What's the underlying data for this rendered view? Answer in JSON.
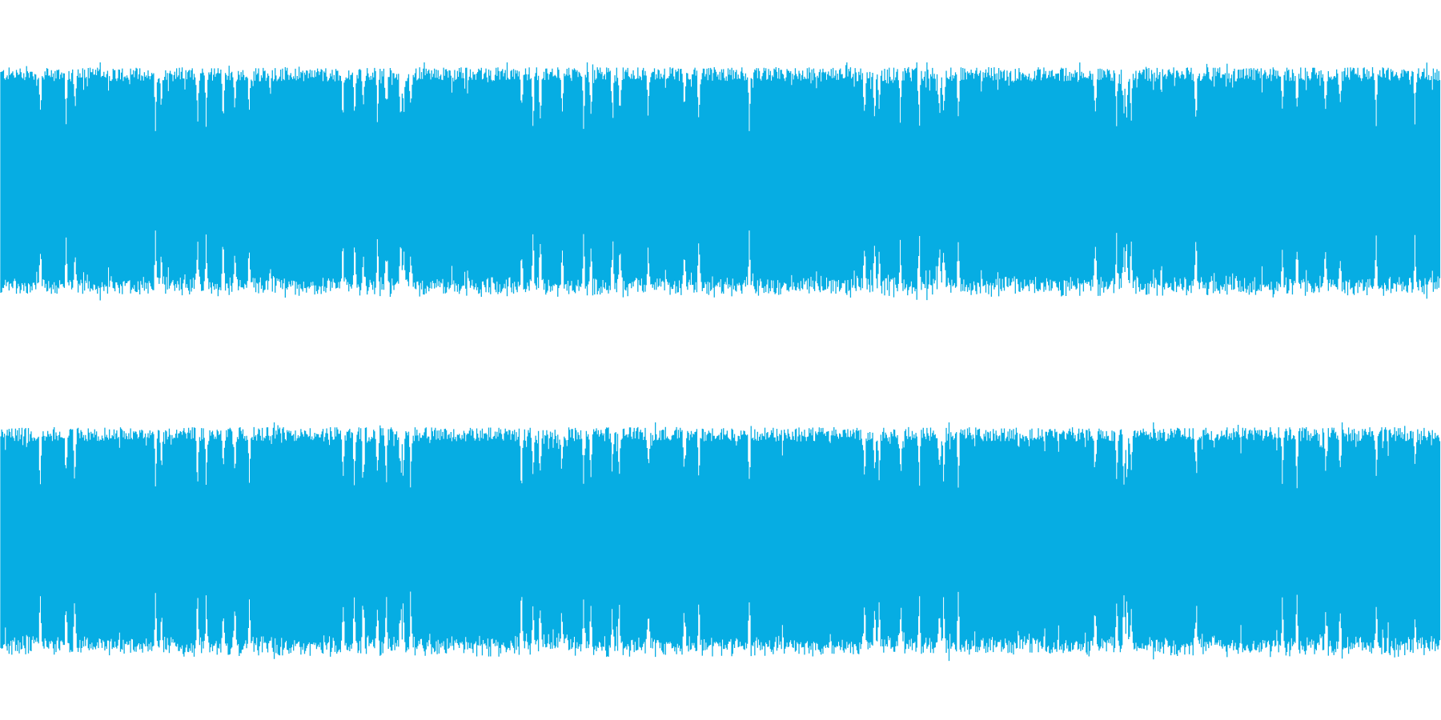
{
  "waveform": {
    "color": "#06ADE3",
    "background": "#FFFFFF",
    "channel_count": 2,
    "channels": [
      {
        "name": "",
        "typical_peak": 0.9,
        "gap_peak": 0.55
      },
      {
        "name": "",
        "typical_peak": 0.9,
        "gap_peak": 0.55
      }
    ]
  }
}
